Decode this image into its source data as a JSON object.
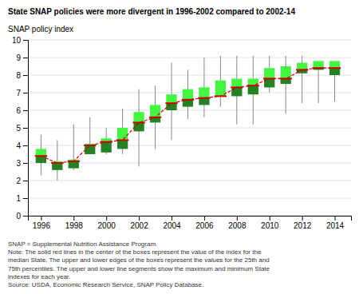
{
  "chart_data": {
    "type": "box",
    "title": "State SNAP policies were more divergent in 1996-2002 compared to 2002-14",
    "y_label": "SNAP policy index",
    "annotations": [
      "SNAP = Supplemental Nutrition Assistance Program.",
      "Note: The solid red lines in the center of the boxes represent the value of the index for the\nmedian State. The upper and lower edges of the boxes represent the values for the 25th and\n75th percentiles. The upper and lower line segments show the maximum and minimum State\nindexes for each year.",
      "Source: USDA, Economic Research Service, SNAP Policy Database."
    ],
    "x": [
      1996,
      1997,
      1998,
      1999,
      2000,
      2001,
      2002,
      2003,
      2004,
      2005,
      2006,
      2007,
      2008,
      2009,
      2010,
      2011,
      2012,
      2013,
      2014
    ],
    "median": [
      3.4,
      3.0,
      3.1,
      4.0,
      4.2,
      4.3,
      5.3,
      5.6,
      6.4,
      6.6,
      6.7,
      6.8,
      7.3,
      7.4,
      7.8,
      7.8,
      8.3,
      8.4,
      8.4
    ],
    "q25": [
      3.0,
      2.6,
      2.7,
      3.5,
      3.6,
      3.8,
      4.8,
      5.3,
      6.0,
      6.2,
      6.3,
      6.8,
      6.8,
      6.9,
      7.3,
      7.5,
      8.1,
      8.3,
      8.0
    ],
    "q75": [
      3.8,
      3.1,
      3.2,
      4.1,
      4.4,
      5.0,
      5.9,
      6.3,
      6.9,
      7.2,
      7.3,
      7.7,
      7.8,
      7.8,
      8.4,
      8.5,
      8.7,
      8.8,
      8.8
    ],
    "min": [
      2.3,
      2.0,
      2.6,
      3.5,
      3.5,
      3.5,
      2.8,
      3.8,
      4.3,
      5.5,
      5.6,
      6.2,
      5.2,
      5.2,
      7.0,
      5.8,
      6.4,
      6.4,
      6.5
    ],
    "max": [
      4.6,
      4.3,
      5.2,
      5.6,
      5.0,
      6.1,
      7.2,
      7.4,
      8.7,
      8.3,
      9.0,
      9.1,
      9.1,
      9.1,
      9.1,
      9.1,
      9.1,
      8.8,
      8.8
    ],
    "color": "#CC0000",
    "xlim": [
      1995.2,
      2015.0
    ],
    "xticks": [
      1996,
      1998,
      2000,
      2002,
      2004,
      2006,
      2008,
      2010,
      2012,
      2014
    ],
    "ylim": [
      0,
      10
    ],
    "yticks": [
      0,
      1,
      2,
      3,
      4,
      5,
      6,
      7,
      8,
      9,
      10
    ],
    "grid": true
  }
}
